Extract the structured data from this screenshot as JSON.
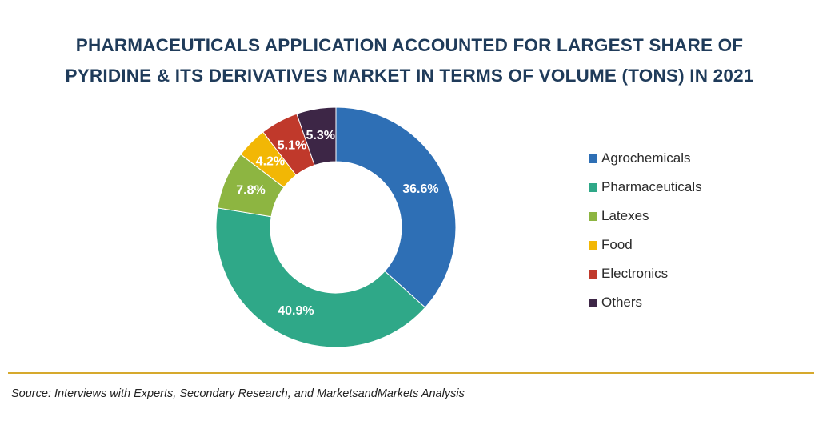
{
  "title": {
    "line1": "PHARMACEUTICALS APPLICATION ACCOUNTED FOR LARGEST SHARE OF",
    "line2": "PYRIDINE & ITS DERIVATIVES MARKET IN TERMS OF VOLUME (TONS) IN 2021"
  },
  "source": "Source: Interviews with Experts, Secondary Research, and MarketsandMarkets Analysis",
  "colors": {
    "title": "#1f3b5a",
    "rule": "#d6a92d"
  },
  "chart_data": {
    "type": "pie",
    "variant": "donut",
    "title": "PHARMACEUTICALS APPLICATION ACCOUNTED FOR LARGEST SHARE OF PYRIDINE & ITS DERIVATIVES MARKET IN TERMS OF VOLUME (TONS) IN 2021",
    "unit": "%",
    "legend_position": "right",
    "slices": [
      {
        "name": "Agrochemicals",
        "value": 36.6,
        "label": "36.6%",
        "color": "#2e6fb5"
      },
      {
        "name": "Pharmaceuticals",
        "value": 40.9,
        "label": "40.9%",
        "color": "#2fa888"
      },
      {
        "name": "Latexes",
        "value": 7.8,
        "label": "7.8%",
        "color": "#8db541"
      },
      {
        "name": "Food",
        "value": 4.2,
        "label": "4.2%",
        "color": "#f2b705"
      },
      {
        "name": "Electronics",
        "value": 5.1,
        "label": "5.1%",
        "color": "#c0392b"
      },
      {
        "name": "Others",
        "value": 5.3,
        "label": "5.3%",
        "color": "#3d2646"
      }
    ]
  }
}
